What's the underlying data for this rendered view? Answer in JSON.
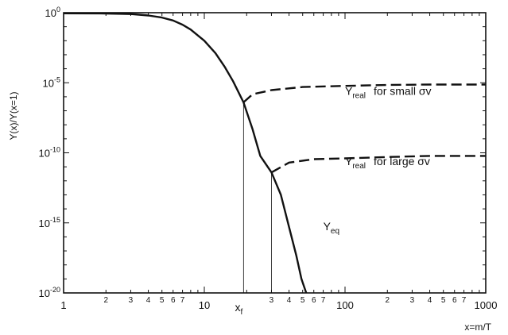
{
  "chart_data": {
    "type": "line",
    "x_scale": "log",
    "y_scale": "log",
    "xlim": [
      1,
      1000
    ],
    "ylim": [
      1e-20,
      1
    ],
    "xlabel": "x=m/T",
    "ylabel": "Y(x)/Y(x=1)",
    "grid": false,
    "x_ticks": {
      "decades": [
        {
          "value": 1,
          "label": "1"
        },
        {
          "value": 10,
          "label": "10"
        },
        {
          "value": 100,
          "label": "100"
        },
        {
          "value": 1000,
          "label": "1000"
        }
      ],
      "minor_labels": [
        "2",
        "3",
        "4",
        "5",
        "6",
        "7"
      ]
    },
    "y_ticks": [
      {
        "value": 1,
        "base": "10",
        "exp": "0"
      },
      {
        "value": 1e-05,
        "base": "10",
        "exp": "-5"
      },
      {
        "value": 1e-10,
        "base": "10",
        "exp": "-10"
      },
      {
        "value": 1e-15,
        "base": "10",
        "exp": "-15"
      },
      {
        "value": 1e-20,
        "base": "10",
        "exp": "-20"
      }
    ],
    "series": [
      {
        "name": "Yeq",
        "style": "solid",
        "color": "#111111",
        "points": [
          [
            1,
            0.9
          ],
          [
            2,
            0.88
          ],
          [
            3,
            0.8
          ],
          [
            4,
            0.63
          ],
          [
            5,
            0.45
          ],
          [
            6,
            0.28
          ],
          [
            7,
            0.14
          ],
          [
            8,
            0.063
          ],
          [
            10,
            0.01
          ],
          [
            12,
            0.0013
          ],
          [
            14,
            0.00013
          ],
          [
            16,
            1.3e-05
          ],
          [
            19,
            4e-07
          ],
          [
            22,
            5e-09
          ],
          [
            25,
            6e-11
          ],
          [
            30,
            4e-12
          ],
          [
            35,
            1e-13
          ],
          [
            40,
            5e-16
          ],
          [
            45,
            5e-18
          ],
          [
            49,
            1e-19
          ],
          [
            53,
            1e-20
          ]
        ]
      },
      {
        "name": "Yreal for small σv",
        "style": "dashed",
        "color": "#111111",
        "points": [
          [
            19,
            4e-07
          ],
          [
            22,
            1.5e-06
          ],
          [
            30,
            3e-06
          ],
          [
            50,
            5e-06
          ],
          [
            100,
            6e-06
          ],
          [
            200,
            7e-06
          ],
          [
            400,
            7.5e-06
          ],
          [
            1000,
            7.5e-06
          ]
        ]
      },
      {
        "name": "Yreal for large σv",
        "style": "dashed",
        "color": "#111111",
        "points": [
          [
            30,
            4e-12
          ],
          [
            40,
            2e-11
          ],
          [
            60,
            3.5e-11
          ],
          [
            100,
            4e-11
          ],
          [
            200,
            5e-11
          ],
          [
            400,
            6e-11
          ],
          [
            1000,
            6e-11
          ]
        ]
      }
    ],
    "freezeout_lines": [
      {
        "x": 19,
        "y_top": 4e-07,
        "label": "x",
        "sub": "f"
      },
      {
        "x": 30,
        "y_top": 4e-12
      }
    ],
    "annotations": [
      {
        "id": "small",
        "main": "Y",
        "sub": "real",
        "rest": "for small σv",
        "x": 100,
        "y": 1.4e-06
      },
      {
        "id": "large",
        "main": "Y",
        "sub": "real",
        "rest": "for large σv",
        "x": 100,
        "y": 1.3e-11
      },
      {
        "id": "eq",
        "main": "Y",
        "sub": "eq",
        "rest": "",
        "x": 70,
        "y": 3e-16
      }
    ]
  }
}
